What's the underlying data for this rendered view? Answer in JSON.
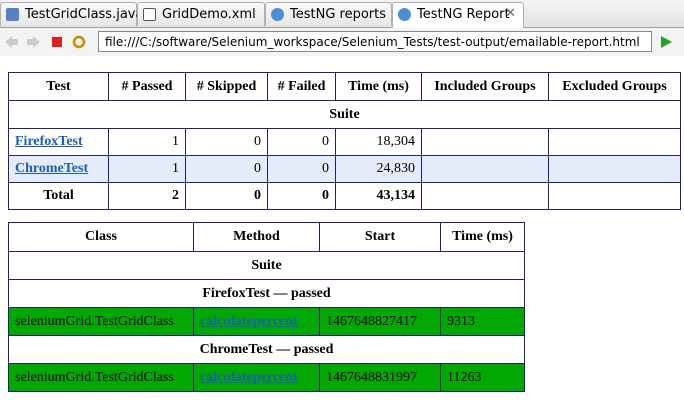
{
  "tabs": [
    "TestGridClass.java",
    "GridDemo.xml",
    "TestNG reports",
    "TestNG Report"
  ],
  "address": "file:///C:/software/Selenium_workspace/Selenium_Tests/test-output/emailable-report.html",
  "summary": {
    "headers": [
      "Test",
      "# Passed",
      "# Skipped",
      "# Failed",
      "Time (ms)",
      "Included Groups",
      "Excluded Groups"
    ],
    "suite": "Suite",
    "rows": [
      [
        "FirefoxTest",
        "1",
        "0",
        "0",
        "18,304"
      ],
      [
        "ChromeTest",
        "1",
        "0",
        "0",
        "24,830"
      ]
    ],
    "total": [
      "Total",
      "2",
      "0",
      "0",
      "43,134"
    ]
  },
  "details": {
    "headers": [
      "Class",
      "Method",
      "Start",
      "Time (ms)"
    ],
    "suite": "Suite",
    "groups": [
      {
        "title": "FirefoxTest — passed",
        "row": [
          "seleniumGrid.TestGridClass",
          "calculatepercent",
          "1467648827417",
          "9313"
        ]
      },
      {
        "title": "ChromeTest — passed",
        "row": [
          "seleniumGrid.TestGridClass",
          "calculatepercent",
          "1467648831997",
          "11263"
        ]
      }
    ]
  }
}
